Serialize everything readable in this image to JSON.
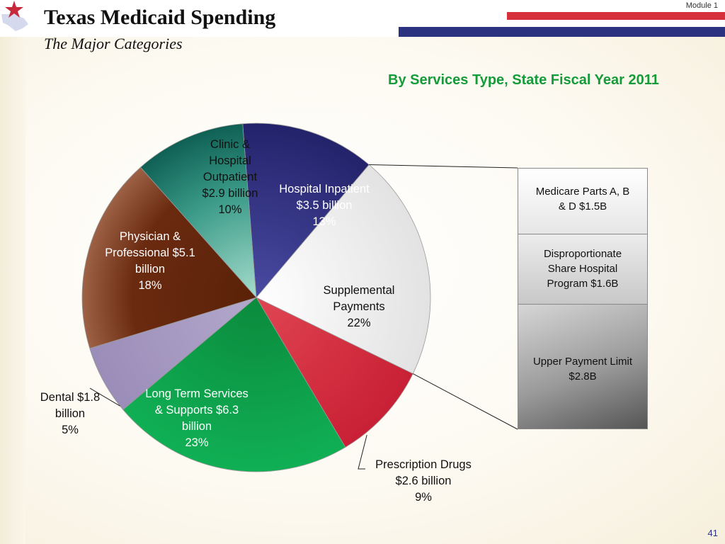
{
  "header": {
    "title": "Texas Medicaid Spending",
    "subtitle": "The Major Categories",
    "module": "Module 1"
  },
  "chart_data": {
    "type": "pie",
    "title": "By Services Type, State Fiscal Year 2011",
    "unit": "billion USD",
    "slices": [
      {
        "key": "hospital-inpatient",
        "name": "Hospital Inpatient",
        "value": 3.5,
        "percent": 13,
        "color": "#2e2e7a",
        "label_lines": [
          "Hospital Inpatient",
          "$3.5 billion",
          "13%"
        ]
      },
      {
        "key": "supplemental-payments",
        "name": "Supplemental Payments",
        "value": 5.9,
        "percent": 22,
        "color": "#f4f4f4",
        "label_lines": [
          "Supplemental",
          "Payments",
          "22%"
        ]
      },
      {
        "key": "prescription-drugs",
        "name": "Prescription Drugs",
        "value": 2.6,
        "percent": 9,
        "color": "#cf2a3c",
        "label_lines": [
          "Prescription Drugs",
          "$2.6 billion",
          "9%"
        ]
      },
      {
        "key": "long-term-services",
        "name": "Long Term Services & Supports",
        "value": 6.3,
        "percent": 23,
        "color": "#0ea04a",
        "label_lines": [
          "Long Term Services",
          "& Supports $6.3",
          "billion",
          "23%"
        ]
      },
      {
        "key": "dental",
        "name": "Dental",
        "value": 1.8,
        "percent": 5,
        "color": "#a497bf",
        "label_lines": [
          "Dental $1.8",
          "billion",
          "5%"
        ]
      },
      {
        "key": "physician-professional",
        "name": "Physician & Professional",
        "value": 5.1,
        "percent": 18,
        "color": "#6e2f17",
        "label_lines": [
          "Physician &",
          "Professional $5.1",
          "billion",
          "18%"
        ]
      },
      {
        "key": "clinic-hospital-outpatient",
        "name": "Clinic & Hospital Outpatient",
        "value": 2.9,
        "percent": 10,
        "color": "#0e6a5e",
        "label_lines": [
          "Clinic &",
          "Hospital",
          "Outpatient",
          "$2.9 billion",
          "10%"
        ]
      }
    ],
    "breakdown": {
      "of": "Supplemental Payments",
      "items": [
        {
          "key": "medicare",
          "name": "Medicare Parts A, B & D",
          "value": 1.5,
          "label_lines": [
            "Medicare Parts A, B",
            "& D $1.5B"
          ]
        },
        {
          "key": "dsh",
          "name": "Disproportionate Share Hospital Program",
          "value": 1.6,
          "label_lines": [
            "Disproportionate",
            "Share Hospital",
            "Program $1.6B"
          ]
        },
        {
          "key": "upl",
          "name": "Upper Payment Limit",
          "value": 2.8,
          "label_lines": [
            "Upper Payment Limit",
            "$2.8B"
          ]
        }
      ]
    }
  },
  "footer": {
    "page_number": "41"
  }
}
